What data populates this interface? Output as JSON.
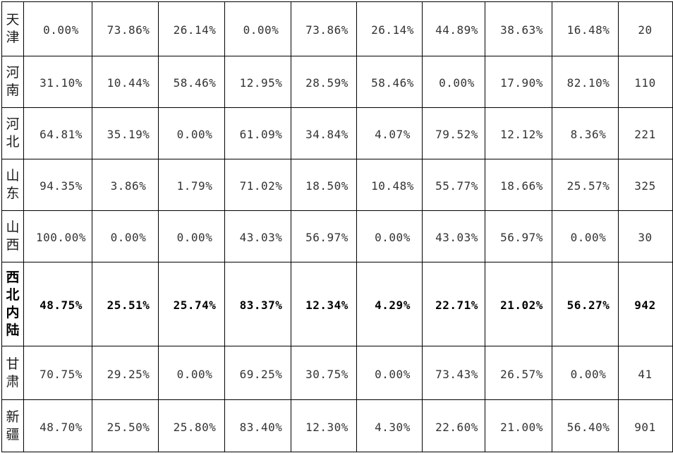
{
  "table": {
    "rows": [
      {
        "label": "天津",
        "bold": false,
        "values": [
          "0.00%",
          "73.86%",
          "26.14%",
          "0.00%",
          "73.86%",
          "26.14%",
          "44.89%",
          "38.63%",
          "16.48%",
          "20"
        ]
      },
      {
        "label": "河南",
        "bold": false,
        "values": [
          "31.10%",
          "10.44%",
          "58.46%",
          "12.95%",
          "28.59%",
          "58.46%",
          "0.00%",
          "17.90%",
          "82.10%",
          "110"
        ]
      },
      {
        "label": "河北",
        "bold": false,
        "values": [
          "64.81%",
          "35.19%",
          "0.00%",
          "61.09%",
          "34.84%",
          "4.07%",
          "79.52%",
          "12.12%",
          "8.36%",
          "221"
        ]
      },
      {
        "label": "山东",
        "bold": false,
        "values": [
          "94.35%",
          "3.86%",
          "1.79%",
          "71.02%",
          "18.50%",
          "10.48%",
          "55.77%",
          "18.66%",
          "25.57%",
          "325"
        ]
      },
      {
        "label": "山西",
        "bold": false,
        "values": [
          "100.00%",
          "0.00%",
          "0.00%",
          "43.03%",
          "56.97%",
          "0.00%",
          "43.03%",
          "56.97%",
          "0.00%",
          "30"
        ]
      },
      {
        "label": "西北内陆",
        "bold": true,
        "values": [
          "48.75%",
          "25.51%",
          "25.74%",
          "83.37%",
          "12.34%",
          "4.29%",
          "22.71%",
          "21.02%",
          "56.27%",
          "942"
        ]
      },
      {
        "label": "甘肃",
        "bold": false,
        "values": [
          "70.75%",
          "29.25%",
          "0.00%",
          "69.25%",
          "30.75%",
          "0.00%",
          "73.43%",
          "26.57%",
          "0.00%",
          "41"
        ]
      },
      {
        "label": "新疆",
        "bold": false,
        "values": [
          "48.70%",
          "25.50%",
          "25.80%",
          "83.40%",
          "12.30%",
          "4.30%",
          "22.60%",
          "21.00%",
          "56.40%",
          "901"
        ]
      }
    ]
  }
}
